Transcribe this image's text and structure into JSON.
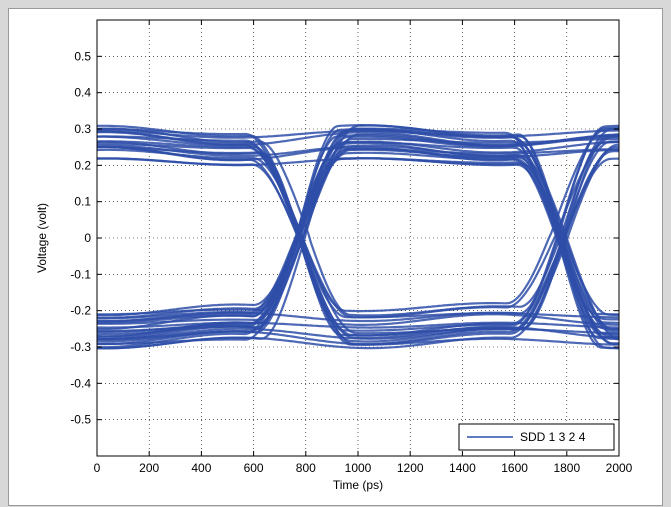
{
  "chart_data": {
    "type": "line",
    "subtype": "eye-diagram",
    "title": "",
    "xlabel": "Time (ps)",
    "ylabel": "Voltage (volt)",
    "xlim": [
      0,
      2000
    ],
    "ylim": [
      -0.6,
      0.6
    ],
    "x_ticks": [
      0,
      200,
      400,
      600,
      800,
      1000,
      1200,
      1400,
      1600,
      1800,
      2000
    ],
    "y_ticks": [
      -0.5,
      -0.4,
      -0.3,
      -0.2,
      -0.1,
      0,
      0.1,
      0.2,
      0.3,
      0.4,
      0.5
    ],
    "y_tick_labels": [
      "-0.5",
      "-0.4",
      "-0.3",
      "-0.2",
      "-0.1",
      "0",
      "0.1",
      "0.2",
      "0.3",
      "0.4",
      "0.5"
    ],
    "grid": true,
    "grid_style": "dotted",
    "legend_position": "bottom-right",
    "series": [
      {
        "name": "SDD 1 3 2 4",
        "color": "#2e4ea8",
        "unit_interval_ps": 1000,
        "first_crossing_ps": 780,
        "high_level_range": [
          0.19,
          0.31
        ],
        "low_level_range": [
          -0.31,
          -0.18
        ],
        "crossing_voltage": 0.0
      }
    ]
  }
}
